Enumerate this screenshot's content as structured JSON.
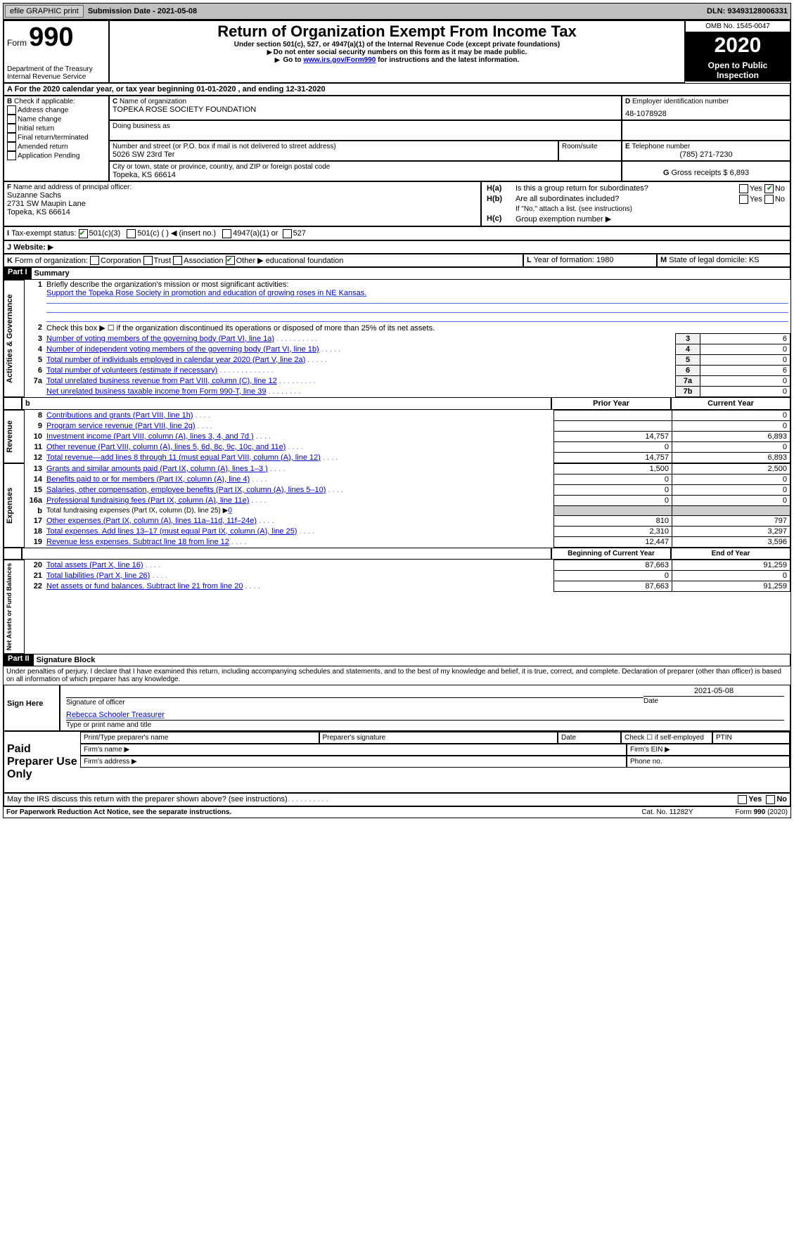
{
  "topbar": {
    "efile": "efile GRAPHIC print",
    "subdate_label": "Submission Date - 2021-05-08",
    "dln": "DLN: 93493128006331"
  },
  "header": {
    "form_label": "Form",
    "form_no": "990",
    "dept1": "Department of the Treasury",
    "dept2": "Internal Revenue Service",
    "title": "Return of Organization Exempt From Income Tax",
    "sub1": "Under section 501(c), 527, or 4947(a)(1) of the Internal Revenue Code (except private foundations)",
    "sub2": "Do not enter social security numbers on this form as it may be made public.",
    "sub3_prefix": "Go to ",
    "sub3_link": "www.irs.gov/Form990",
    "sub3_suffix": " for instructions and the latest information.",
    "omb": "OMB No. 1545-0047",
    "year": "2020",
    "open": "Open to Public Inspection"
  },
  "a_line": {
    "text": "For the 2020 calendar year, or tax year beginning 01-01-2020   , and ending 12-31-2020",
    "lead": "A"
  },
  "b": {
    "label": "Check if applicable:",
    "items": [
      "Address change",
      "Name change",
      "Initial return",
      "Final return/terminated",
      "Amended return",
      "Application Pending"
    ]
  },
  "c": {
    "name_label": "Name of organization",
    "name": "TOPEKA ROSE SOCIETY FOUNDATION",
    "dba_label": "Doing business as",
    "addr_label": "Number and street (or P.O. box if mail is not delivered to street address)",
    "room_label": "Room/suite",
    "addr": "5026 SW 23rd Ter",
    "city_label": "City or town, state or province, country, and ZIP or foreign postal code",
    "city": "Topeka, KS  66614"
  },
  "d": {
    "label": "Employer identification number",
    "val": "48-1078928"
  },
  "e": {
    "label": "Telephone number",
    "val": "(785) 271-7230"
  },
  "g": {
    "label": "Gross receipts $ 6,893"
  },
  "f": {
    "label": "Name and address of principal officer:",
    "name": "Suzanne Sachs",
    "addr1": "2731 SW Maupin Lane",
    "addr2": "Topeka, KS  66614"
  },
  "h": {
    "a_q": "Is this a group return for subordinates?",
    "b_q": "Are all subordinates included?",
    "b_note": "If \"No,\" attach a list. (see instructions)",
    "c_q": "Group exemption number",
    "yes": "Yes",
    "no": "No"
  },
  "i": {
    "label": "Tax-exempt status:",
    "opts": [
      "501(c)(3)",
      "501(c) (  ) ◀ (insert no.)",
      "4947(a)(1) or",
      "527"
    ]
  },
  "j": {
    "label": "Website:"
  },
  "k": {
    "label": "Form of organization:",
    "opts": [
      "Corporation",
      "Trust",
      "Association",
      "Other"
    ],
    "other_text": "educational foundation"
  },
  "l": {
    "label": "Year of formation: 1980"
  },
  "m": {
    "label": "State of legal domicile: KS"
  },
  "part1": {
    "label": "Part I",
    "title": "Summary",
    "sections": {
      "gov": "Activities & Governance",
      "rev": "Revenue",
      "exp": "Expenses",
      "net": "Net Assets or Fund Balances"
    },
    "lines": {
      "1_label": "Briefly describe the organization's mission or most significant activities:",
      "1_text": "Support the Topeka Rose Society in promotion and education of growing roses in NE Kansas.",
      "2": "Check this box ▶ ☐ if the organization discontinued its operations or disposed of more than 25% of its net assets.",
      "3": "Number of voting members of the governing body (Part VI, line 1a)",
      "4": "Number of independent voting members of the governing body (Part VI, line 1b)",
      "5": "Total number of individuals employed in calendar year 2020 (Part V, line 2a)",
      "6": "Total number of volunteers (estimate if necessary)",
      "7a": "Total unrelated business revenue from Part VIII, column (C), line 12",
      "7b": "Net unrelated business taxable income from Form 990-T, line 39",
      "8": "Contributions and grants (Part VIII, line 1h)",
      "9": "Program service revenue (Part VIII, line 2g)",
      "10": "Investment income (Part VIII, column (A), lines 3, 4, and 7d )",
      "11": "Other revenue (Part VIII, column (A), lines 5, 6d, 8c, 9c, 10c, and 11e)",
      "12": "Total revenue—add lines 8 through 11 (must equal Part VIII, column (A), line 12)",
      "13": "Grants and similar amounts paid (Part IX, column (A), lines 1–3 )",
      "14": "Benefits paid to or for members (Part IX, column (A), line 4)",
      "15": "Salaries, other compensation, employee benefits (Part IX, column (A), lines 5–10)",
      "16a": "Professional fundraising fees (Part IX, column (A), line 11e)",
      "16b_pre": "Total fundraising expenses (Part IX, column (D), line 25) ▶",
      "16b_val": "0",
      "17": "Other expenses (Part IX, column (A), lines 11a–11d, 11f–24e)",
      "18": "Total expenses. Add lines 13–17 (must equal Part IX, column (A), line 25)",
      "19": "Revenue less expenses. Subtract line 18 from line 12",
      "20": "Total assets (Part X, line 16)",
      "21": "Total liabilities (Part X, line 26)",
      "22": "Net assets or fund balances. Subtract line 21 from line 20"
    },
    "cols": {
      "prior": "Prior Year",
      "current": "Current Year",
      "bocy": "Beginning of Current Year",
      "eoy": "End of Year"
    },
    "vals": {
      "3": "6",
      "4": "0",
      "5": "0",
      "6": "6",
      "7a": "0",
      "7b": "0",
      "8": [
        "",
        "0"
      ],
      "9": [
        "",
        "0"
      ],
      "10": [
        "14,757",
        "6,893"
      ],
      "11": [
        "0",
        "0"
      ],
      "12": [
        "14,757",
        "6,893"
      ],
      "13": [
        "1,500",
        "2,500"
      ],
      "14": [
        "0",
        "0"
      ],
      "15": [
        "0",
        "0"
      ],
      "16a": [
        "0",
        "0"
      ],
      "17": [
        "810",
        "797"
      ],
      "18": [
        "2,310",
        "3,297"
      ],
      "19": [
        "12,447",
        "3,596"
      ],
      "20": [
        "87,663",
        "91,259"
      ],
      "21": [
        "0",
        "0"
      ],
      "22": [
        "87,663",
        "91,259"
      ]
    }
  },
  "part2": {
    "label": "Part II",
    "title": "Signature Block",
    "perjury": "Under penalties of perjury, I declare that I have examined this return, including accompanying schedules and statements, and to the best of my knowledge and belief, it is true, correct, and complete. Declaration of preparer (other than officer) is based on all information of which preparer has any knowledge.",
    "sign_here": "Sign Here",
    "sig_label": "Signature of officer",
    "date": "2021-05-08",
    "date_label": "Date",
    "officer": "Rebecca Schooler Treasurer",
    "officer_label": "Type or print name and title",
    "paid": "Paid Preparer Use Only",
    "pp_name": "Print/Type preparer's name",
    "pp_sig": "Preparer's signature",
    "pp_date": "Date",
    "check_se": "Check ☐ if self-employed",
    "ptin": "PTIN",
    "firm_name": "Firm's name  ▶",
    "firm_ein": "Firm's EIN ▶",
    "firm_addr": "Firm's address ▶",
    "phone": "Phone no.",
    "discuss": "May the IRS discuss this return with the preparer shown above? (see instructions)",
    "yes": "Yes",
    "no": "No"
  },
  "footer": {
    "pra": "For Paperwork Reduction Act Notice, see the separate instructions.",
    "cat": "Cat. No. 11282Y",
    "form": "Form 990 (2020)"
  }
}
